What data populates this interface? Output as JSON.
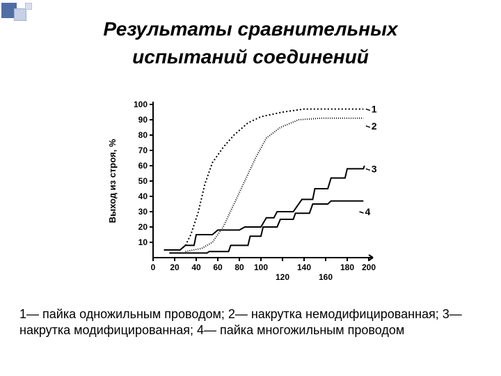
{
  "accent_colors": {
    "big": "#4f6fa4",
    "mid_fill": "#c6d0e6",
    "mid_border": "#9fb0d4",
    "small_fill": "#d9dfef",
    "small_border": "#b7c2de"
  },
  "title_line1": "Результаты сравнительных",
  "title_line2": "испытаний соединений",
  "title": {
    "font_style": "italic",
    "font_weight": "bold",
    "font_size_pt": 21,
    "color": "#000000"
  },
  "legend_text": "1— пайка одножильным проводом; 2— накрутка немодифицированная; 3—накрутка модифицированная; 4— пайка многожильным проводом",
  "legend": {
    "font_size_pt": 13,
    "color": "#000000"
  },
  "chart": {
    "type": "line-step",
    "background_color": "#ffffff",
    "axis_color": "#000000",
    "line_color": "#000000",
    "line_width": 2,
    "ylabel": "Выход из строя, %",
    "ylabel_fontsize": 13,
    "xlim": [
      0,
      200
    ],
    "ylim": [
      0,
      100
    ],
    "yticks": [
      10,
      20,
      30,
      40,
      50,
      60,
      70,
      80,
      90,
      100
    ],
    "xticks_top": [
      0,
      20,
      40,
      60,
      80,
      100,
      140,
      180,
      200
    ],
    "xticks_bot": [
      120,
      160
    ],
    "series": {
      "1": {
        "label": "1",
        "dash": "2,3",
        "points": [
          [
            25,
            5
          ],
          [
            30,
            8
          ],
          [
            35,
            15
          ],
          [
            42,
            30
          ],
          [
            48,
            48
          ],
          [
            55,
            62
          ],
          [
            65,
            72
          ],
          [
            75,
            80
          ],
          [
            88,
            88
          ],
          [
            100,
            92
          ],
          [
            120,
            95
          ],
          [
            140,
            97
          ],
          [
            170,
            97
          ],
          [
            195,
            97
          ]
        ]
      },
      "2": {
        "label": "2",
        "dash": "1,2",
        "points": [
          [
            30,
            4
          ],
          [
            45,
            6
          ],
          [
            55,
            10
          ],
          [
            65,
            20
          ],
          [
            75,
            35
          ],
          [
            85,
            50
          ],
          [
            95,
            65
          ],
          [
            105,
            78
          ],
          [
            118,
            85
          ],
          [
            135,
            90
          ],
          [
            155,
            91
          ],
          [
            180,
            91
          ],
          [
            195,
            91
          ]
        ]
      },
      "3": {
        "label": "3",
        "dash": "",
        "points": [
          [
            10,
            5
          ],
          [
            25,
            5
          ],
          [
            30,
            8
          ],
          [
            38,
            8
          ],
          [
            40,
            15
          ],
          [
            55,
            15
          ],
          [
            60,
            18
          ],
          [
            80,
            18
          ],
          [
            85,
            20
          ],
          [
            100,
            20
          ],
          [
            105,
            26
          ],
          [
            112,
            26
          ],
          [
            115,
            30
          ],
          [
            130,
            30
          ],
          [
            138,
            38
          ],
          [
            148,
            38
          ],
          [
            150,
            45
          ],
          [
            162,
            45
          ],
          [
            165,
            52
          ],
          [
            178,
            52
          ],
          [
            180,
            58
          ],
          [
            195,
            58
          ],
          [
            196,
            60
          ]
        ]
      },
      "4": {
        "label": "4",
        "dash": "",
        "points": [
          [
            15,
            3
          ],
          [
            50,
            3
          ],
          [
            52,
            4
          ],
          [
            70,
            4
          ],
          [
            72,
            8
          ],
          [
            88,
            8
          ],
          [
            90,
            14
          ],
          [
            100,
            14
          ],
          [
            102,
            20
          ],
          [
            115,
            20
          ],
          [
            118,
            25
          ],
          [
            130,
            25
          ],
          [
            132,
            29
          ],
          [
            145,
            29
          ],
          [
            148,
            35
          ],
          [
            162,
            35
          ],
          [
            165,
            37
          ],
          [
            195,
            37
          ]
        ]
      }
    },
    "series_label_positions": {
      "1": [
        196,
        97
      ],
      "2": [
        196,
        86
      ],
      "3": [
        196,
        58
      ],
      "4": [
        190,
        30
      ]
    },
    "tick_font_size": 12,
    "tick_font_weight": "bold"
  }
}
